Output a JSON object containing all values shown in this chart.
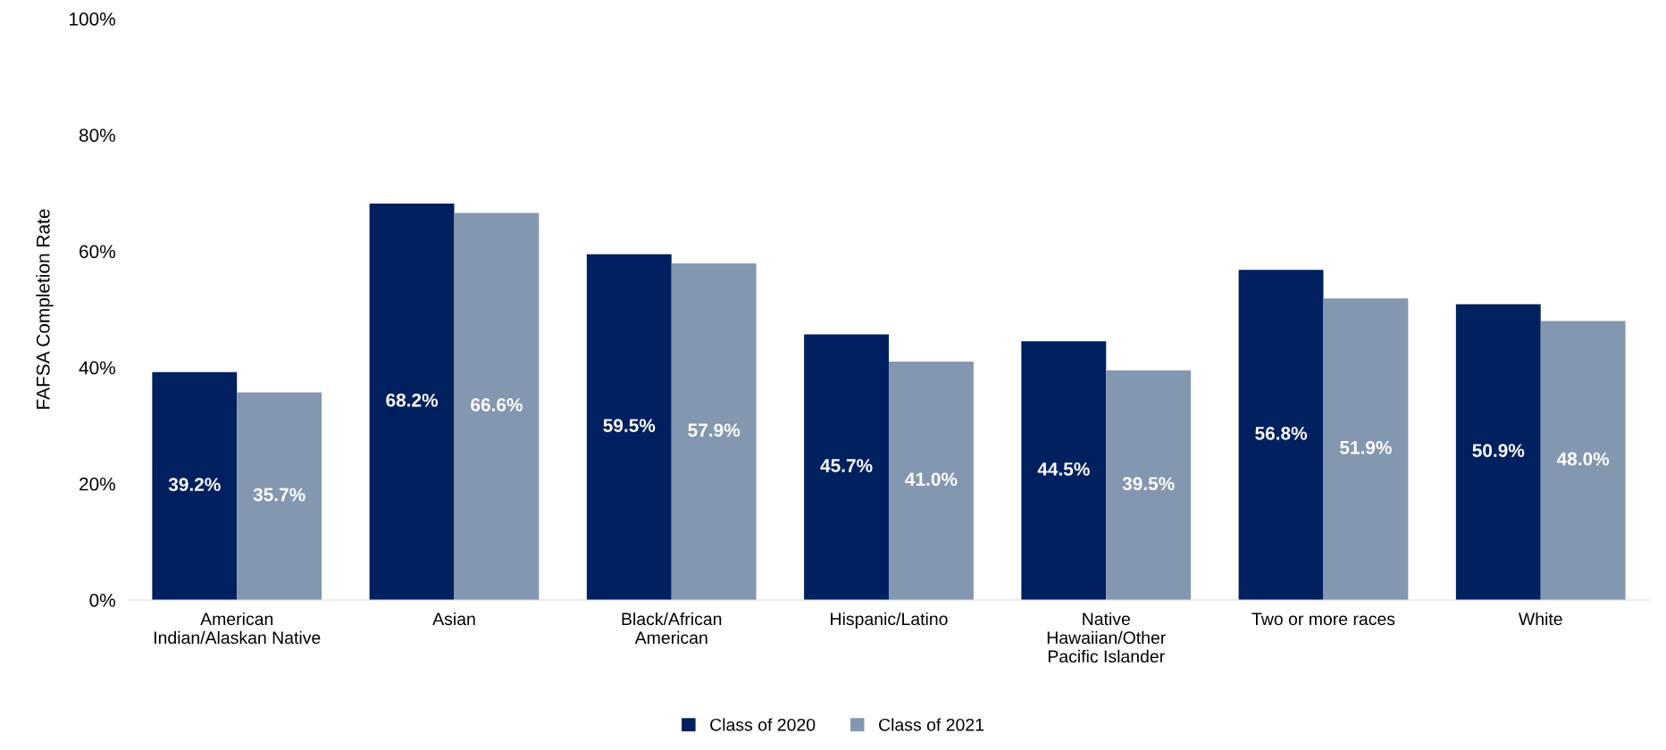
{
  "chart_data": {
    "type": "bar",
    "ylabel": "FAFSA Completion Rate",
    "categories": [
      "American\nIndian/Alaskan Native",
      "Asian",
      "Black/African\nAmerican",
      "Hispanic/Latino",
      "Native\nHawaiian/Other\nPacific Islander",
      "Two or more races",
      "White"
    ],
    "series": [
      {
        "name": "Class of 2020",
        "color": "#002060",
        "values": [
          39.2,
          68.2,
          59.5,
          45.7,
          44.5,
          56.8,
          50.9
        ],
        "value_labels": [
          "39.2%",
          "68.2%",
          "59.5%",
          "45.7%",
          "44.5%",
          "56.8%",
          "50.9%"
        ]
      },
      {
        "name": "Class of 2021",
        "color": "#8497b0",
        "values": [
          35.7,
          66.6,
          57.9,
          41.0,
          39.5,
          51.9,
          48.0
        ],
        "value_labels": [
          "35.7%",
          "66.6%",
          "57.9%",
          "41.0%",
          "39.5%",
          "51.9%",
          "48.0%"
        ]
      }
    ],
    "ylim": [
      0,
      100
    ],
    "yticks": [
      {
        "value": 0,
        "label": "0%"
      },
      {
        "value": 20,
        "label": "20%"
      },
      {
        "value": 40,
        "label": "40%"
      },
      {
        "value": 60,
        "label": "60%"
      },
      {
        "value": 80,
        "label": "80%"
      },
      {
        "value": 100,
        "label": "100%"
      }
    ],
    "grid": false,
    "legend": "bottom"
  }
}
